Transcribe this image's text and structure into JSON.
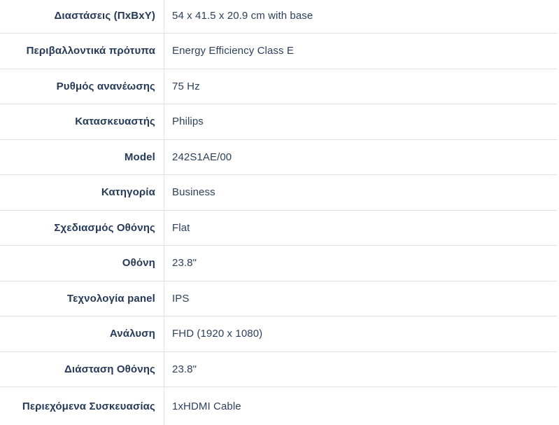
{
  "spec_table": {
    "rows": [
      {
        "label": "Διαστάσεις (ΠxΒxΥ)",
        "value": "54 x 41.5 x 20.9 cm with base"
      },
      {
        "label": "Περιβαλλοντικά πρότυπα",
        "value": "Energy Efficiency Class E"
      },
      {
        "label": "Ρυθμός ανανέωσης",
        "value": "75 Hz"
      },
      {
        "label": "Κατασκευαστής",
        "value": "Philips"
      },
      {
        "label": "Model",
        "value": "242S1AE/00"
      },
      {
        "label": "Κατηγορία",
        "value": "Business"
      },
      {
        "label": "Σχεδιασμός Οθόνης",
        "value": "Flat"
      },
      {
        "label": "Οθόνη",
        "value": "23.8\""
      },
      {
        "label": "Τεχνολογία panel",
        "value": "IPS"
      },
      {
        "label": "Ανάλυση",
        "value": "FHD (1920 x 1080)"
      },
      {
        "label": "Διάσταση Οθόνης",
        "value": "23.8\""
      },
      {
        "label": "Περιεχόμενα Συσκευασίας",
        "value": "1xHDMI Cable"
      }
    ]
  },
  "colors": {
    "label_text": "#253a58",
    "value_text": "#2d415e",
    "row_border": "#e0e1e7",
    "column_divider": "#e2e3e8",
    "background": "#ffffff"
  }
}
